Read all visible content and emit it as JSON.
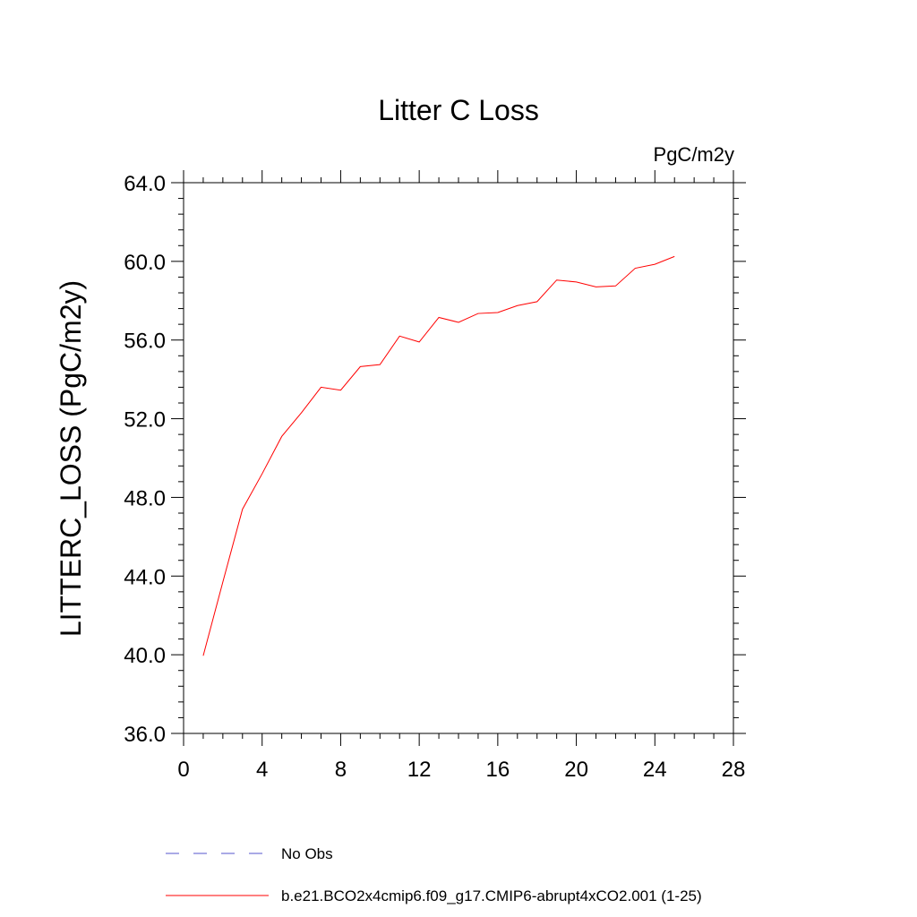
{
  "chart_data": {
    "type": "line",
    "title": "Litter C Loss",
    "units": "PgC/m2y",
    "xlabel": "",
    "ylabel": "LITTERC_LOSS  (PgC/m2y)",
    "xlim": [
      0,
      28
    ],
    "ylim": [
      36,
      64
    ],
    "x_ticks": [
      0,
      4,
      8,
      12,
      16,
      20,
      24,
      28
    ],
    "x_tick_labels": [
      "0",
      "4",
      "8",
      "12",
      "16",
      "20",
      "24",
      "28"
    ],
    "y_ticks": [
      36,
      40,
      44,
      48,
      52,
      56,
      60,
      64
    ],
    "y_tick_labels": [
      "36.0",
      "40.0",
      "44.0",
      "48.0",
      "52.0",
      "56.0",
      "60.0",
      "64.0"
    ],
    "grid": false,
    "legend_position": "bottom",
    "series": [
      {
        "name": "No Obs",
        "color": "#5555cc",
        "style": "dashed",
        "x": [],
        "y": []
      },
      {
        "name": "b.e21.BCO2x4cmip6.f09_g17.CMIP6-abrupt4xCO2.001 (1-25)",
        "color": "#ff0000",
        "style": "solid",
        "x": [
          1,
          2,
          3,
          4,
          5,
          6,
          7,
          8,
          9,
          10,
          11,
          12,
          13,
          14,
          15,
          16,
          17,
          18,
          19,
          20,
          21,
          22,
          23,
          24,
          25
        ],
        "y": [
          39.95,
          43.7,
          47.4,
          49.2,
          51.1,
          52.3,
          53.6,
          53.45,
          54.65,
          54.75,
          56.2,
          55.9,
          57.15,
          56.9,
          57.35,
          57.4,
          57.75,
          57.95,
          59.05,
          58.95,
          58.7,
          58.75,
          59.65,
          59.85,
          60.25
        ]
      }
    ]
  }
}
